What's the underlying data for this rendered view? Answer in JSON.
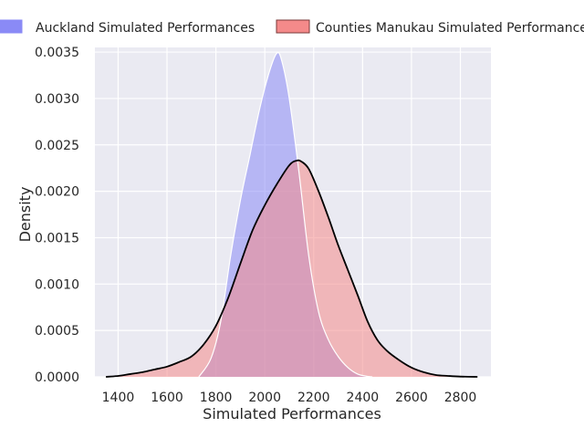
{
  "chart_data": {
    "type": "area",
    "title": "",
    "xlabel": "Simulated Performances",
    "ylabel": "Density",
    "xlim": [
      1305,
      2925
    ],
    "ylim": [
      0,
      0.00355
    ],
    "x_ticks": [
      1400,
      1600,
      1800,
      2000,
      2200,
      2400,
      2600,
      2800
    ],
    "y_ticks": [
      "0.0000",
      "0.0005",
      "0.0010",
      "0.0015",
      "0.0020",
      "0.0025",
      "0.0030",
      "0.0035"
    ],
    "y_tick_values": [
      0,
      0.0005,
      0.001,
      0.0015,
      0.002,
      0.0025,
      0.003,
      0.0035
    ],
    "grid": true,
    "legend_position": "top",
    "series": [
      {
        "name": "Auckland Simulated Performances",
        "fill_color": "#8a8af6",
        "line_color": "#ffffff",
        "x": [
          1730,
          1780,
          1820,
          1860,
          1900,
          1940,
          1980,
          2020,
          2050,
          2070,
          2100,
          2140,
          2180,
          2220,
          2260,
          2300,
          2340,
          2380,
          2420,
          2440
        ],
        "y": [
          0.0,
          0.0002,
          0.0006,
          0.0013,
          0.0019,
          0.0024,
          0.0029,
          0.0033,
          0.00349,
          0.0034,
          0.003,
          0.0022,
          0.0013,
          0.0007,
          0.0004,
          0.00022,
          0.0001,
          3e-05,
          5e-06,
          0.0
        ]
      },
      {
        "name": "Counties Manukau Simulated Performances",
        "fill_color": "#f48a8a",
        "line_color": "#000000",
        "x": [
          1350,
          1400,
          1450,
          1500,
          1550,
          1600,
          1650,
          1700,
          1750,
          1800,
          1850,
          1900,
          1950,
          2000,
          2050,
          2100,
          2130,
          2150,
          2180,
          2220,
          2260,
          2300,
          2340,
          2380,
          2420,
          2460,
          2500,
          2550,
          2600,
          2650,
          2700,
          2750,
          2800,
          2870
        ],
        "y": [
          0.0,
          1e-05,
          3e-05,
          5e-05,
          8e-05,
          0.00011,
          0.00016,
          0.00022,
          0.00035,
          0.00055,
          0.00085,
          0.00122,
          0.00158,
          0.00185,
          0.00208,
          0.00228,
          0.00233,
          0.00232,
          0.00224,
          0.002,
          0.00172,
          0.00142,
          0.00115,
          0.00088,
          0.0006,
          0.0004,
          0.00028,
          0.00018,
          0.0001,
          5e-05,
          2e-05,
          1e-05,
          3e-06,
          0.0
        ]
      }
    ]
  }
}
